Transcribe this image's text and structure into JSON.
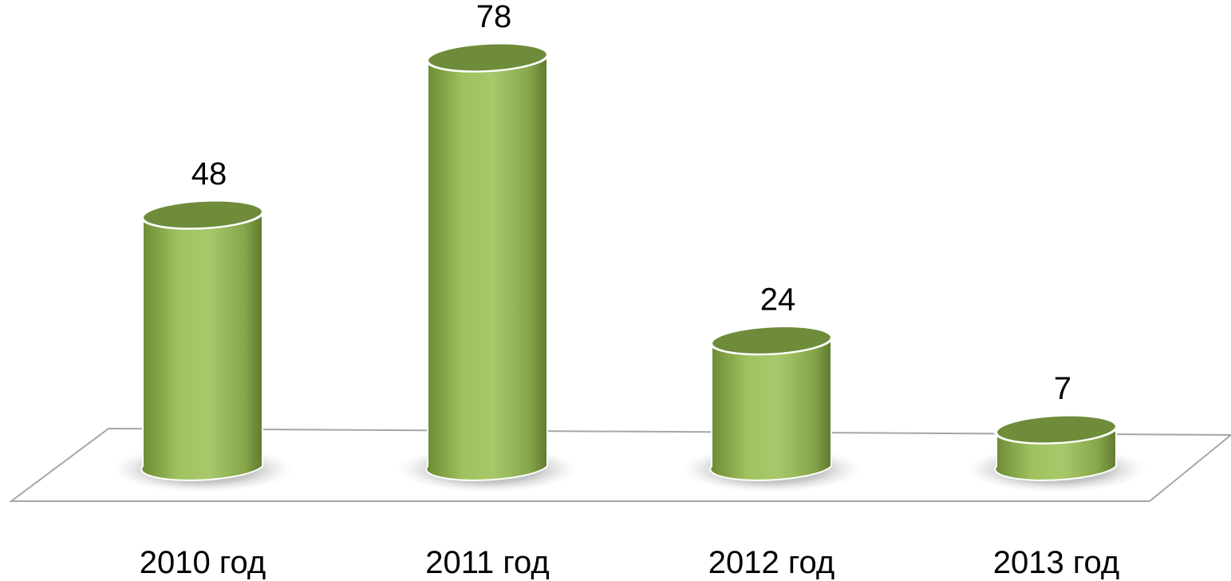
{
  "chart_data": {
    "type": "bar",
    "style": "3d-cylinder",
    "categories": [
      "2010 год",
      "2011 год",
      "2012 год",
      "2013 год"
    ],
    "values": [
      48,
      78,
      24,
      7
    ],
    "data_labels": [
      "48",
      "78",
      "24",
      "7"
    ],
    "title": "",
    "xlabel": "",
    "ylabel": "",
    "ylim": [
      0,
      78
    ],
    "grid": false,
    "legend": "none",
    "colors": {
      "bar_top": "#6f8c3a",
      "bar_light": "#a9c86a",
      "bar_dark": "#5f7a2e",
      "floor_line": "#a6a6a6"
    }
  }
}
